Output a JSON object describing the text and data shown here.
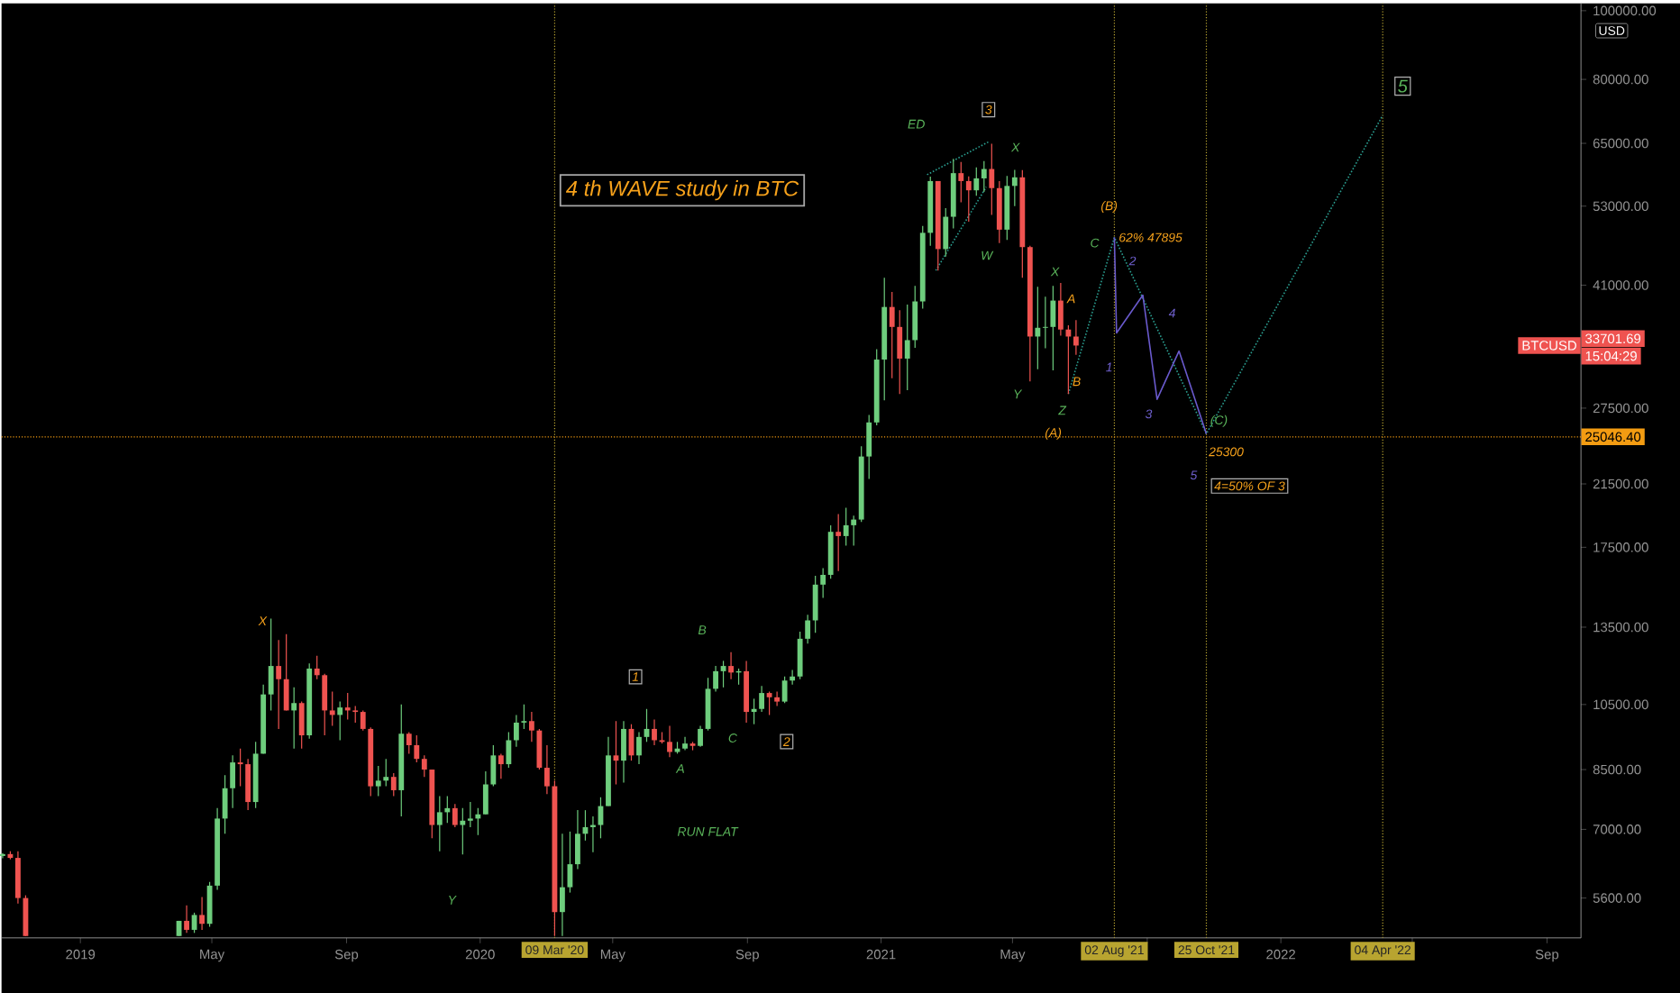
{
  "chart_data": {
    "type": "candlestick",
    "title": "4 th WAVE study in BTC",
    "ylabel": "USD",
    "log": "y",
    "xlim": [
      "2018-10-21",
      "2022-10-02"
    ],
    "ylim": [
      4920,
      102400
    ],
    "xticks": [
      {
        "value": "2019-01-01",
        "label": "2019"
      },
      {
        "value": "2019-05-01",
        "label": "May"
      },
      {
        "value": "2019-09-01",
        "label": "Sep"
      },
      {
        "value": "2020-01-01",
        "label": "2020"
      },
      {
        "value": "2020-05-01",
        "label": "May"
      },
      {
        "value": "2020-09-01",
        "label": "Sep"
      },
      {
        "value": "2021-01-01",
        "label": "2021"
      },
      {
        "value": "2021-05-01",
        "label": "May"
      },
      {
        "value": "2021-09-01",
        "label": null
      },
      {
        "value": "2022-01-01",
        "label": "2022"
      },
      {
        "value": "2022-05-01",
        "label": null
      },
      {
        "value": "2022-09-01",
        "label": "Sep"
      }
    ],
    "yticks": [
      {
        "value": 5600,
        "label": "5600.00"
      },
      {
        "value": 7000,
        "label": "7000.00"
      },
      {
        "value": 8500,
        "label": "8500.00"
      },
      {
        "value": 10500,
        "label": "10500.00"
      },
      {
        "value": 13500,
        "label": "13500.00"
      },
      {
        "value": 17500,
        "label": "17500.00"
      },
      {
        "value": 21500,
        "label": "21500.00"
      },
      {
        "value": 27500,
        "label": "27500.00"
      },
      {
        "value": 41000,
        "label": "41000.00"
      },
      {
        "value": 53000,
        "label": "53000.00"
      },
      {
        "value": 65000,
        "label": "65000.00"
      },
      {
        "value": 80000,
        "label": "80000.00"
      },
      {
        "value": 100000,
        "label": "100000.00"
      }
    ],
    "x": [
      "2018-10-22",
      "2018-10-29",
      "2018-11-05",
      "2018-11-12",
      "2019-04-01",
      "2019-04-08",
      "2019-04-15",
      "2019-04-22",
      "2019-04-29",
      "2019-05-06",
      "2019-05-13",
      "2019-05-20",
      "2019-05-27",
      "2019-06-03",
      "2019-06-10",
      "2019-06-17",
      "2019-06-24",
      "2019-07-01",
      "2019-07-08",
      "2019-07-15",
      "2019-07-22",
      "2019-07-29",
      "2019-08-05",
      "2019-08-12",
      "2019-08-19",
      "2019-08-26",
      "2019-09-02",
      "2019-09-09",
      "2019-09-16",
      "2019-09-23",
      "2019-09-30",
      "2019-10-07",
      "2019-10-14",
      "2019-10-21",
      "2019-10-28",
      "2019-11-04",
      "2019-11-11",
      "2019-11-18",
      "2019-11-25",
      "2019-12-02",
      "2019-12-09",
      "2019-12-16",
      "2019-12-23",
      "2019-12-30",
      "2020-01-06",
      "2020-01-13",
      "2020-01-20",
      "2020-01-27",
      "2020-02-03",
      "2020-02-10",
      "2020-02-17",
      "2020-02-24",
      "2020-03-02",
      "2020-03-09",
      "2020-03-16",
      "2020-03-23",
      "2020-03-30",
      "2020-04-06",
      "2020-04-13",
      "2020-04-20",
      "2020-04-27",
      "2020-05-04",
      "2020-05-11",
      "2020-05-18",
      "2020-05-25",
      "2020-06-01",
      "2020-06-08",
      "2020-06-15",
      "2020-06-22",
      "2020-06-29",
      "2020-07-06",
      "2020-07-13",
      "2020-07-20",
      "2020-07-27",
      "2020-08-03",
      "2020-08-10",
      "2020-08-17",
      "2020-08-24",
      "2020-08-31",
      "2020-09-07",
      "2020-09-14",
      "2020-09-21",
      "2020-09-28",
      "2020-10-05",
      "2020-10-12",
      "2020-10-19",
      "2020-10-26",
      "2020-11-02",
      "2020-11-09",
      "2020-11-16",
      "2020-11-23",
      "2020-11-30",
      "2020-12-07",
      "2020-12-14",
      "2020-12-21",
      "2020-12-28",
      "2021-01-04",
      "2021-01-11",
      "2021-01-18",
      "2021-01-25",
      "2021-02-01",
      "2021-02-08",
      "2021-02-15",
      "2021-02-22",
      "2021-03-01",
      "2021-03-08",
      "2021-03-15",
      "2021-03-22",
      "2021-03-29",
      "2021-04-05",
      "2021-04-12",
      "2021-04-19",
      "2021-04-26",
      "2021-05-03",
      "2021-05-10",
      "2021-05-17",
      "2021-05-24",
      "2021-05-31",
      "2021-06-07",
      "2021-06-14",
      "2021-06-21",
      "2021-06-28"
    ],
    "ohlc": [
      [
        6420,
        6480,
        6370,
        6460
      ],
      [
        6460,
        6520,
        6350,
        6380
      ],
      [
        6380,
        6520,
        5500,
        5600
      ],
      [
        5600,
        5650,
        4950,
        4950
      ],
      [
        4950,
        5200,
        4950,
        5200
      ],
      [
        5200,
        5470,
        5000,
        5050
      ],
      [
        5050,
        5340,
        5000,
        5300
      ],
      [
        5300,
        5620,
        5050,
        5150
      ],
      [
        5150,
        5900,
        5100,
        5830
      ],
      [
        5830,
        7500,
        5750,
        7250
      ],
      [
        7250,
        8350,
        6900,
        8000
      ],
      [
        8000,
        8900,
        7500,
        8700
      ],
      [
        8700,
        9100,
        8050,
        8650
      ],
      [
        8650,
        8800,
        7450,
        7650
      ],
      [
        7650,
        9300,
        7500,
        8950
      ],
      [
        8950,
        11200,
        8950,
        10850
      ],
      [
        10850,
        13880,
        10300,
        11900
      ],
      [
        11900,
        12950,
        9700,
        11400
      ],
      [
        11400,
        13200,
        10300,
        10300
      ],
      [
        10300,
        11100,
        9100,
        10550
      ],
      [
        10550,
        10600,
        9100,
        9500
      ],
      [
        9500,
        12000,
        9400,
        11800
      ],
      [
        11800,
        12300,
        11400,
        11550
      ],
      [
        11550,
        11600,
        9500,
        10300
      ],
      [
        10300,
        10950,
        9800,
        10150
      ],
      [
        10150,
        10600,
        9350,
        10400
      ],
      [
        10400,
        10900,
        10000,
        10300
      ],
      [
        10300,
        10450,
        9900,
        10250
      ],
      [
        10250,
        10300,
        9650,
        9700
      ],
      [
        9700,
        9750,
        7800,
        8050
      ],
      [
        8050,
        8600,
        7800,
        8200
      ],
      [
        8200,
        8800,
        8050,
        8300
      ],
      [
        8300,
        8400,
        7800,
        7950
      ],
      [
        7950,
        10500,
        7300,
        9550
      ],
      [
        9550,
        9600,
        8950,
        9200
      ],
      [
        9200,
        9500,
        8700,
        8800
      ],
      [
        8800,
        8900,
        8300,
        8500
      ],
      [
        8500,
        8500,
        6800,
        7100
      ],
      [
        7100,
        7800,
        6520,
        7400
      ],
      [
        7400,
        7800,
        7150,
        7500
      ],
      [
        7500,
        7600,
        7050,
        7100
      ],
      [
        7100,
        7500,
        6450,
        7200
      ],
      [
        7200,
        7650,
        7050,
        7250
      ],
      [
        7250,
        7500,
        6870,
        7350
      ],
      [
        7350,
        8450,
        7350,
        8100
      ],
      [
        8100,
        9200,
        8050,
        8900
      ],
      [
        8900,
        8950,
        8250,
        8650
      ],
      [
        8650,
        9600,
        8550,
        9350
      ],
      [
        9350,
        10150,
        9150,
        9900
      ],
      [
        9900,
        10500,
        9700,
        9950
      ],
      [
        9950,
        10250,
        9300,
        9650
      ],
      [
        9650,
        9700,
        8500,
        8550
      ],
      [
        8550,
        9200,
        7850,
        8050
      ],
      [
        8050,
        8200,
        4950,
        5350
      ],
      [
        5350,
        6900,
        4950,
        5800
      ],
      [
        5800,
        6950,
        5700,
        6250
      ],
      [
        6250,
        7450,
        6150,
        6900
      ],
      [
        6900,
        7450,
        6750,
        7050
      ],
      [
        7050,
        7300,
        6500,
        7100
      ],
      [
        7100,
        7770,
        6800,
        7550
      ],
      [
        7550,
        9450,
        7550,
        8900
      ],
      [
        8900,
        9950,
        8100,
        8750
      ],
      [
        8750,
        9950,
        8150,
        9700
      ],
      [
        9700,
        9850,
        8750,
        8900
      ],
      [
        8900,
        9600,
        8650,
        9450
      ],
      [
        9450,
        10350,
        9300,
        9700
      ],
      [
        9700,
        10000,
        9200,
        9350
      ],
      [
        9350,
        9600,
        9250,
        9300
      ],
      [
        9300,
        9800,
        8850,
        9000
      ],
      [
        9000,
        9300,
        8950,
        9100
      ],
      [
        9100,
        9450,
        9050,
        9250
      ],
      [
        9250,
        9300,
        9050,
        9180
      ],
      [
        9180,
        9800,
        9150,
        9700
      ],
      [
        9700,
        11450,
        9650,
        11050
      ],
      [
        11050,
        11900,
        10950,
        11700
      ],
      [
        11700,
        12100,
        11100,
        11900
      ],
      [
        11900,
        12450,
        11400,
        11650
      ],
      [
        11650,
        11800,
        11200,
        11700
      ],
      [
        11700,
        12100,
        9900,
        10250
      ],
      [
        10250,
        10700,
        9850,
        10350
      ],
      [
        10350,
        11150,
        10250,
        10900
      ],
      [
        10900,
        10950,
        10150,
        10750
      ],
      [
        10750,
        10950,
        10450,
        10600
      ],
      [
        10600,
        11500,
        10550,
        11350
      ],
      [
        11350,
        11750,
        11200,
        11500
      ],
      [
        11500,
        13300,
        11400,
        13000
      ],
      [
        13000,
        14050,
        12800,
        13800
      ],
      [
        13800,
        15950,
        13250,
        15500
      ],
      [
        15500,
        16350,
        14850,
        16000
      ],
      [
        16000,
        18800,
        15800,
        18400
      ],
      [
        18400,
        19500,
        16200,
        18150
      ],
      [
        18150,
        19900,
        17600,
        18800
      ],
      [
        18800,
        19400,
        17600,
        19150
      ],
      [
        19150,
        24300,
        19000,
        23500
      ],
      [
        23500,
        26900,
        21850,
        26250
      ],
      [
        26250,
        33300,
        26000,
        32200
      ],
      [
        32200,
        42000,
        28200,
        38200
      ],
      [
        38200,
        40100,
        30300,
        35800
      ],
      [
        35800,
        37800,
        28800,
        32300
      ],
      [
        32300,
        38500,
        29150,
        34300
      ],
      [
        34300,
        40900,
        33450,
        38900
      ],
      [
        38900,
        49700,
        38000,
        48600
      ],
      [
        48600,
        58350,
        46600,
        57500
      ],
      [
        57500,
        57500,
        43000,
        46100
      ],
      [
        46100,
        52650,
        45000,
        51200
      ],
      [
        51200,
        61800,
        49300,
        59000
      ],
      [
        59000,
        61200,
        53650,
        57500
      ],
      [
        57500,
        58400,
        50400,
        55800
      ],
      [
        55800,
        60100,
        54800,
        58000
      ],
      [
        58000,
        61350,
        55500,
        59800
      ],
      [
        59800,
        64900,
        51500,
        56200
      ],
      [
        56200,
        57500,
        47000,
        49100
      ],
      [
        49100,
        58450,
        47500,
        56600
      ],
      [
        56600,
        59650,
        53000,
        58200
      ],
      [
        58200,
        59600,
        42000,
        46400
      ],
      [
        46400,
        46600,
        30000,
        34700
      ],
      [
        34700,
        40800,
        31200,
        35700
      ],
      [
        35700,
        39500,
        33400,
        35800
      ],
      [
        35800,
        40900,
        31100,
        39000
      ],
      [
        39000,
        41300,
        34800,
        35500
      ],
      [
        35500,
        36000,
        28800,
        34700
      ],
      [
        34700,
        36600,
        32700,
        33701.69
      ]
    ],
    "series": [
      {
        "type": "line",
        "color": "#2a9d8f",
        "line_style": "dotted",
        "x": [
          "2021-06-21",
          "2021-08-02",
          "2021-10-25",
          "2022-04-04"
        ],
        "values": [
          28800,
          47895,
          25300,
          71200
        ]
      },
      {
        "type": "line",
        "color": "#6a5acd",
        "line_style": "solid",
        "x": [
          "2021-08-02",
          "2021-08-04",
          "2021-08-28",
          "2021-09-10",
          "2021-09-30",
          "2021-10-25"
        ],
        "values": [
          47895,
          35100,
          39700,
          28300,
          33100,
          25300
        ]
      },
      {
        "type": "line",
        "color": "#2a9d8f",
        "line_style": "dotted",
        "x": [
          "2021-02-12",
          "2021-04-09"
        ],
        "values": [
          58700,
          65300
        ]
      },
      {
        "type": "line",
        "color": "#2a9d8f",
        "line_style": "dotted",
        "x": [
          "2021-02-20",
          "2021-04-07"
        ],
        "values": [
          43000,
          56400
        ]
      }
    ],
    "ref_lines": [
      {
        "axis": "x",
        "value": "2020-03-09",
        "label": "09 Mar '20",
        "color": "#b8a430",
        "line_style": "dotted"
      },
      {
        "axis": "x",
        "value": "2021-08-02",
        "label": "02 Aug '21",
        "color": "#b8a430",
        "line_style": "dotted"
      },
      {
        "axis": "x",
        "value": "2021-10-25",
        "label": "25 Oct '21",
        "color": "#b8a430",
        "line_style": "dotted"
      },
      {
        "axis": "x",
        "value": "2022-04-04",
        "label": "04 Apr '22",
        "color": "#b8a430",
        "line_style": "dotted"
      },
      {
        "axis": "y",
        "value": 25046.4,
        "label": "25046.40",
        "color": "#f39c12",
        "line_style": "dotted"
      }
    ],
    "annotations": [
      "X",
      "Y",
      "1",
      "B",
      "A",
      "C",
      "2",
      "RUN FLAT",
      "ED",
      "3",
      "X",
      "W",
      "Y",
      "X",
      "A",
      "B",
      "Z",
      "(A)",
      "C",
      "(B)",
      "62% 47895",
      "1",
      "2",
      "3",
      "4",
      "5",
      "(C)",
      "25300",
      "4=50% OF 3",
      "5",
      "BTCUSD",
      "33701.69",
      "15:04:29"
    ]
  }
}
